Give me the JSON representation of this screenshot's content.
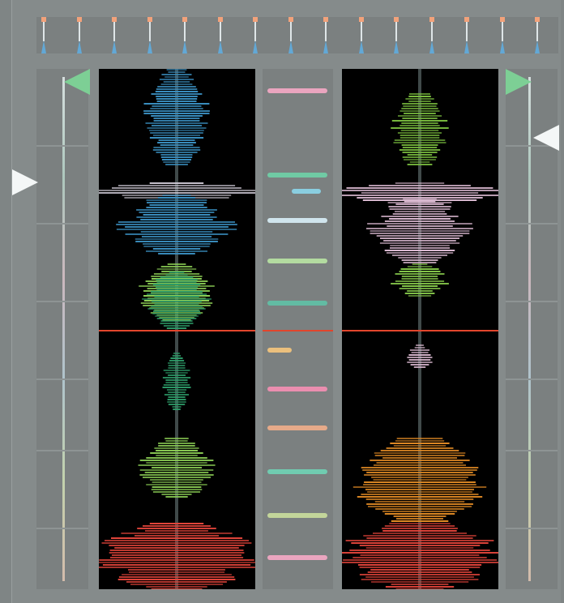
{
  "app": {
    "colors": {
      "frame": "#858b8b",
      "panel_bg": "#000000",
      "playhead": "#e2452c",
      "cue_green": "#7dcf95",
      "cue_white": "#f4f7f7"
    }
  },
  "top_strip": {
    "meter_count": 15,
    "colors": {
      "peak": "#f2a27a",
      "stem": "#dfe6e8",
      "base": "#62a8d6"
    }
  },
  "left_deck": {
    "overview": {
      "icon_primary": "green-cue-triangle-icon",
      "icon_secondary": "white-position-triangle-icon"
    },
    "waveform": {
      "playhead_position": 0.5,
      "color_scheme": [
        "#3a8fc0",
        "#d8d2df",
        "#8ccf55",
        "#2d9e6a",
        "#e6453b"
      ]
    }
  },
  "right_deck": {
    "overview": {
      "icon_primary": "green-cue-triangle-icon",
      "icon_secondary": "white-position-triangle-icon"
    },
    "waveform": {
      "playhead_position": 0.5,
      "color_scheme": [
        "#7bbf3f",
        "#dcbad2",
        "#85c74a",
        "#e18a24",
        "#e6453b"
      ]
    }
  },
  "cue_column": {
    "colors": [
      "#f3a8c4",
      "#6fd0a7",
      "#8bd5e8",
      "#d7eef6",
      "#b7e3a3",
      "#5fc0a6",
      "#f4c57d",
      "#f38fb3",
      "#efae8a",
      "#6fd1b4",
      "#c9dc9c"
    ]
  }
}
